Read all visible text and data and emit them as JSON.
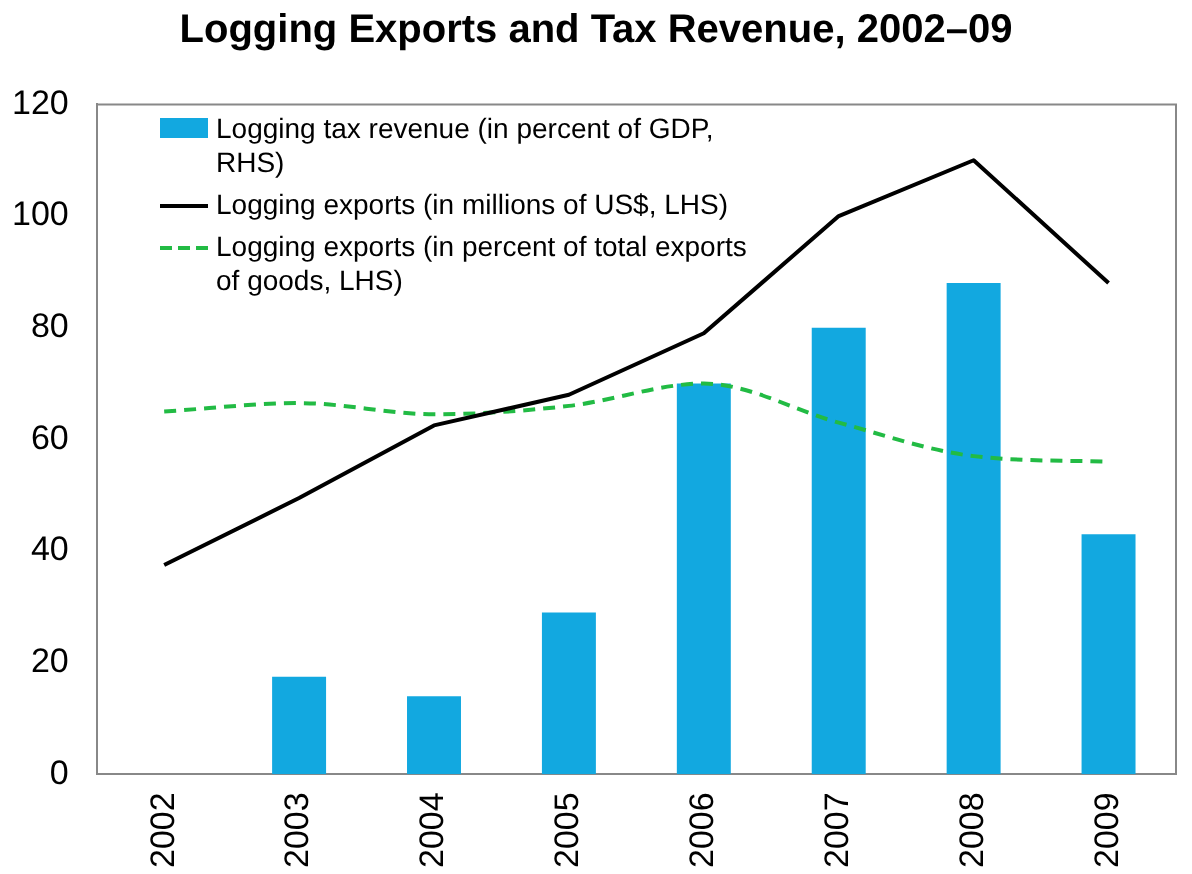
{
  "chart_data": {
    "type": "bar",
    "title": "Logging Exports and Tax Revenue, 2002–09",
    "categories": [
      "2002",
      "2003",
      "2004",
      "2005",
      "2006",
      "2007",
      "2008",
      "2009"
    ],
    "series": [
      {
        "name": "Logging tax revenue (in percent of GDP, RHS)",
        "color": "#12a8e0",
        "values": [
          null,
          17.5,
          14,
          29,
          70,
          80,
          88,
          43
        ]
      },
      {
        "name": "Logging exports (in millions of US$, LHS)",
        "type": "line",
        "color": "#000000",
        "line_style": "solid",
        "values": [
          37.5,
          49.5,
          62.5,
          68,
          79,
          100,
          110,
          88
        ]
      },
      {
        "name": "Logging exports (in percent of total exports of goods, LHS)",
        "type": "line",
        "color": "#22bb44",
        "line_style": "dashed",
        "values": [
          65,
          66.5,
          64.5,
          66,
          70,
          63,
          57,
          56
        ]
      }
    ],
    "ylim": [
      0,
      120
    ],
    "yticks": [
      0,
      20,
      40,
      60,
      80,
      100,
      120
    ],
    "grid": false,
    "legend": "top left",
    "marker": "none"
  }
}
